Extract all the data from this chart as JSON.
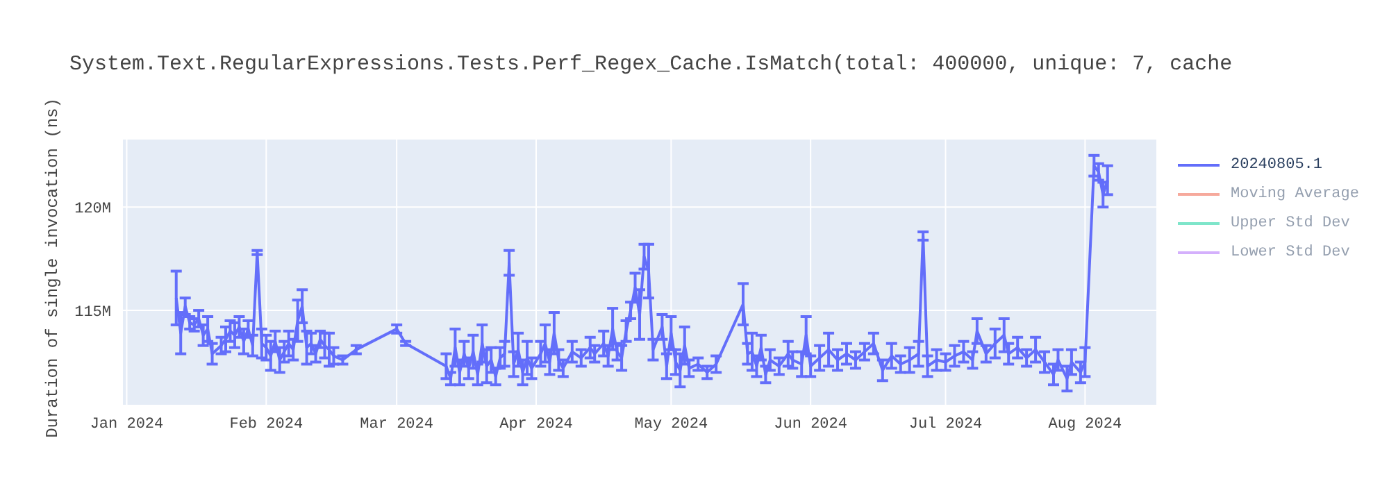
{
  "chart_data": {
    "type": "line",
    "title": "System.Text.RegularExpressions.Tests.Perf_Regex_Cache.IsMatch(total: 400000, unique: 7, cache",
    "ylabel": "Duration of single invocation (ns)",
    "x": [
      "2024-01-12",
      "2024-01-13",
      "2024-01-14",
      "2024-01-15",
      "2024-01-16",
      "2024-01-17",
      "2024-01-18",
      "2024-01-19",
      "2024-01-20",
      "2024-01-22",
      "2024-01-23",
      "2024-01-24",
      "2024-01-25",
      "2024-01-26",
      "2024-01-27",
      "2024-01-28",
      "2024-01-29",
      "2024-01-30",
      "2024-01-31",
      "2024-02-01",
      "2024-02-02",
      "2024-02-03",
      "2024-02-04",
      "2024-02-05",
      "2024-02-06",
      "2024-02-07",
      "2024-02-08",
      "2024-02-09",
      "2024-02-10",
      "2024-02-11",
      "2024-02-12",
      "2024-02-13",
      "2024-02-14",
      "2024-02-15",
      "2024-02-16",
      "2024-02-18",
      "2024-02-21",
      "2024-03-01",
      "2024-03-03",
      "2024-03-12",
      "2024-03-13",
      "2024-03-14",
      "2024-03-15",
      "2024-03-16",
      "2024-03-17",
      "2024-03-18",
      "2024-03-19",
      "2024-03-20",
      "2024-03-21",
      "2024-03-22",
      "2024-03-23",
      "2024-03-24",
      "2024-03-25",
      "2024-03-26",
      "2024-03-27",
      "2024-03-28",
      "2024-03-29",
      "2024-03-30",
      "2024-03-31",
      "2024-04-02",
      "2024-04-03",
      "2024-04-04",
      "2024-04-05",
      "2024-04-06",
      "2024-04-07",
      "2024-04-09",
      "2024-04-11",
      "2024-04-13",
      "2024-04-14",
      "2024-04-16",
      "2024-04-17",
      "2024-04-18",
      "2024-04-19",
      "2024-04-20",
      "2024-04-21",
      "2024-04-22",
      "2024-04-23",
      "2024-04-24",
      "2024-04-25",
      "2024-04-26",
      "2024-04-27",
      "2024-04-29",
      "2024-04-30",
      "2024-05-01",
      "2024-05-02",
      "2024-05-03",
      "2024-05-04",
      "2024-05-05",
      "2024-05-07",
      "2024-05-09",
      "2024-05-11",
      "2024-05-17",
      "2024-05-18",
      "2024-05-19",
      "2024-05-20",
      "2024-05-21",
      "2024-05-22",
      "2024-05-23",
      "2024-05-25",
      "2024-05-27",
      "2024-05-28",
      "2024-05-30",
      "2024-05-31",
      "2024-06-01",
      "2024-06-03",
      "2024-06-05",
      "2024-06-07",
      "2024-06-09",
      "2024-06-11",
      "2024-06-13",
      "2024-06-15",
      "2024-06-17",
      "2024-06-19",
      "2024-06-21",
      "2024-06-23",
      "2024-06-25",
      "2024-06-26",
      "2024-06-27",
      "2024-06-29",
      "2024-07-01",
      "2024-07-03",
      "2024-07-05",
      "2024-07-07",
      "2024-07-08",
      "2024-07-10",
      "2024-07-12",
      "2024-07-14",
      "2024-07-15",
      "2024-07-17",
      "2024-07-19",
      "2024-07-21",
      "2024-07-23",
      "2024-07-25",
      "2024-07-26",
      "2024-07-28",
      "2024-07-29",
      "2024-07-31",
      "2024-08-01",
      "2024-08-03",
      "2024-08-04",
      "2024-08-05",
      "2024-08-06"
    ],
    "series": [
      {
        "name": "20240805.1",
        "color": "#636efa",
        "values": [
          115600000.0,
          113900000.0,
          115200000.0,
          114400000.0,
          114300000.0,
          114600000.0,
          113800000.0,
          114100000.0,
          112900000.0,
          113300000.0,
          113600000.0,
          114000000.0,
          113800000.0,
          114200000.0,
          113500000.0,
          114100000.0,
          113300000.0,
          117800000.0,
          113400000.0,
          113200000.0,
          112800000.0,
          113500000.0,
          112600000.0,
          113000000.0,
          113400000.0,
          113100000.0,
          114500000.0,
          115200000.0,
          113200000.0,
          113400000.0,
          112900000.0,
          113600000.0,
          113300000.0,
          113100000.0,
          112800000.0,
          112600000.0,
          113100000.0,
          114100000.0,
          113400000.0,
          112300000.0,
          111700000.0,
          113200000.0,
          112000000.0,
          112900000.0,
          112200000.0,
          113000000.0,
          111900000.0,
          113400000.0,
          112300000.0,
          112600000.0,
          111800000.0,
          112700000.0,
          112900000.0,
          117300000.0,
          112400000.0,
          113100000.0,
          112000000.0,
          112700000.0,
          112200000.0,
          112900000.0,
          113400000.0,
          112500000.0,
          113900000.0,
          112600000.0,
          112200000.0,
          113000000.0,
          112700000.0,
          113200000.0,
          112900000.0,
          113400000.0,
          112800000.0,
          114100000.0,
          113000000.0,
          112700000.0,
          114000000.0,
          115000000.0,
          116100000.0,
          114800000.0,
          117600000.0,
          116900000.0,
          113100000.0,
          114200000.0,
          112300000.0,
          113900000.0,
          112500000.0,
          112100000.0,
          113300000.0,
          112200000.0,
          112400000.0,
          112000000.0,
          112400000.0,
          115300000.0,
          112900000.0,
          113000000.0,
          112300000.0,
          113200000.0,
          111900000.0,
          112600000.0,
          112300000.0,
          112900000.0,
          112600000.0,
          112400000.0,
          113800000.0,
          112300000.0,
          112700000.0,
          113100000.0,
          112600000.0,
          112900000.0,
          112600000.0,
          113000000.0,
          113400000.0,
          112100000.0,
          112800000.0,
          112400000.0,
          112600000.0,
          112900000.0,
          118600000.0,
          112300000.0,
          112600000.0,
          112500000.0,
          112800000.0,
          113000000.0,
          112600000.0,
          114000000.0,
          112900000.0,
          113400000.0,
          113800000.0,
          112900000.0,
          113200000.0,
          112700000.0,
          113100000.0,
          112500000.0,
          111900000.0,
          112600000.0,
          111700000.0,
          112500000.0,
          112000000.0,
          112500000.0,
          122000000.0,
          121700000.0,
          120600000.0,
          121300000.0
        ],
        "errors": [
          1300000.0,
          1000000.0,
          400000.0,
          300000.0,
          300000.0,
          400000.0,
          500000.0,
          600000.0,
          500000.0,
          400000.0,
          600000.0,
          500000.0,
          600000.0,
          500000.0,
          600000.0,
          400000.0,
          500000.0,
          100000.0,
          700000.0,
          600000.0,
          700000.0,
          500000.0,
          600000.0,
          500000.0,
          600000.0,
          500000.0,
          1000000.0,
          800000.0,
          800000.0,
          500000.0,
          400000.0,
          400000.0,
          600000.0,
          800000.0,
          400000.0,
          200000.0,
          200000.0,
          200000.0,
          100000.0,
          600000.0,
          300000.0,
          900000.0,
          600000.0,
          600000.0,
          500000.0,
          800000.0,
          500000.0,
          900000.0,
          800000.0,
          600000.0,
          400000.0,
          500000.0,
          600000.0,
          600000.0,
          600000.0,
          800000.0,
          600000.0,
          800000.0,
          500000.0,
          600000.0,
          900000.0,
          600000.0,
          1000000.0,
          500000.0,
          400000.0,
          500000.0,
          400000.0,
          500000.0,
          400000.0,
          600000.0,
          500000.0,
          1000000.0,
          400000.0,
          600000.0,
          500000.0,
          400000.0,
          700000.0,
          1200000.0,
          600000.0,
          1300000.0,
          500000.0,
          600000.0,
          600000.0,
          800000.0,
          600000.0,
          800000.0,
          900000.0,
          400000.0,
          300000.0,
          300000.0,
          400000.0,
          1000000.0,
          500000.0,
          900000.0,
          500000.0,
          600000.0,
          400000.0,
          500000.0,
          400000.0,
          600000.0,
          400000.0,
          600000.0,
          900000.0,
          500000.0,
          600000.0,
          800000.0,
          500000.0,
          500000.0,
          400000.0,
          400000.0,
          500000.0,
          500000.0,
          600000.0,
          400000.0,
          600000.0,
          600000.0,
          200000.0,
          500000.0,
          500000.0,
          400000.0,
          500000.0,
          500000.0,
          400000.0,
          600000.0,
          400000.0,
          700000.0,
          800000.0,
          500000.0,
          500000.0,
          400000.0,
          600000.0,
          500000.0,
          500000.0,
          500000.0,
          600000.0,
          600000.0,
          500000.0,
          700000.0,
          500000.0,
          400000.0,
          600000.0,
          700000.0
        ]
      },
      {
        "name": "Moving Average",
        "color": "#ef553b",
        "values": [
          null,
          null,
          null,
          null,
          null,
          null,
          null,
          null,
          null,
          null,
          null,
          null,
          null,
          null,
          null,
          null,
          null,
          null,
          null,
          null,
          null,
          null,
          null,
          null,
          null,
          null,
          null,
          null,
          null,
          null,
          null,
          null,
          null,
          null,
          null,
          null,
          null,
          null,
          null,
          null,
          null,
          null,
          null,
          null,
          null,
          null,
          null,
          null,
          null,
          null,
          null,
          null,
          null,
          null,
          null,
          null,
          null,
          null,
          null,
          null,
          null,
          null,
          null,
          null,
          null,
          null,
          null,
          null,
          null,
          null,
          null,
          null,
          null,
          null,
          null,
          null,
          null,
          null,
          null,
          null,
          null,
          null,
          null,
          null,
          null,
          null,
          null,
          null,
          null,
          null,
          null,
          null,
          null,
          null,
          null,
          null,
          null,
          null,
          null,
          null,
          null,
          null,
          null,
          null,
          null,
          null,
          null,
          null,
          null,
          null,
          null,
          null,
          null,
          null,
          null,
          null,
          null,
          null,
          null,
          null,
          null,
          null,
          null,
          null,
          null,
          null,
          null,
          null,
          null,
          null,
          null,
          null,
          null,
          null,
          null,
          null,
          null,
          null,
          null,
          null,
          null,
          null
        ]
      },
      {
        "name": "Upper Std Dev",
        "color": "#00cc96",
        "values": [
          null,
          null,
          null,
          null,
          null,
          null,
          null,
          null,
          null,
          null,
          null,
          null,
          null,
          null,
          null,
          null,
          null,
          null,
          null,
          null,
          null,
          null,
          null,
          null,
          null,
          null,
          null,
          null,
          null,
          null,
          null,
          null,
          null,
          null,
          null,
          null,
          null,
          null,
          null,
          null,
          null,
          null,
          null,
          null,
          null,
          null,
          null,
          null,
          null,
          null,
          null,
          null,
          null,
          null,
          null,
          null,
          null,
          null,
          null,
          null,
          null,
          null,
          null,
          null,
          null,
          null,
          null,
          null,
          null,
          null,
          null,
          null,
          null,
          null,
          null,
          null,
          null,
          null,
          null,
          null,
          null,
          null,
          null,
          null,
          null,
          null,
          null,
          null,
          null,
          null,
          null,
          null,
          null,
          null,
          null,
          null,
          null,
          null,
          null,
          null,
          null,
          null,
          null,
          null,
          null,
          null,
          null,
          null,
          null,
          null,
          null,
          null,
          null,
          null,
          null,
          null,
          null,
          null,
          null,
          null,
          null,
          null,
          null,
          null,
          null,
          null,
          null,
          null,
          null,
          null,
          null,
          null,
          null,
          null,
          null,
          null,
          null,
          null,
          null,
          null,
          null,
          null
        ]
      },
      {
        "name": "Lower Std Dev",
        "color": "#ab63fa",
        "values": [
          null,
          null,
          null,
          null,
          null,
          null,
          null,
          null,
          null,
          null,
          null,
          null,
          null,
          null,
          null,
          null,
          null,
          null,
          null,
          null,
          null,
          null,
          null,
          null,
          null,
          null,
          null,
          null,
          null,
          null,
          null,
          null,
          null,
          null,
          null,
          null,
          null,
          null,
          null,
          null,
          null,
          null,
          null,
          null,
          null,
          null,
          null,
          null,
          null,
          null,
          null,
          null,
          null,
          null,
          null,
          null,
          null,
          null,
          null,
          null,
          null,
          null,
          null,
          null,
          null,
          null,
          null,
          null,
          null,
          null,
          null,
          null,
          null,
          null,
          null,
          null,
          null,
          null,
          null,
          null,
          null,
          null,
          null,
          null,
          null,
          null,
          null,
          null,
          null,
          null,
          null,
          null,
          null,
          null,
          null,
          null,
          null,
          null,
          null,
          null,
          null,
          null,
          null,
          null,
          null,
          null,
          null,
          null,
          null,
          null,
          null,
          null,
          null,
          null,
          null,
          null,
          null,
          null,
          null,
          null,
          null,
          null,
          null,
          null,
          null,
          null,
          null,
          null,
          null,
          null,
          null,
          null,
          null,
          null,
          null,
          null,
          null,
          null,
          null,
          null,
          null,
          null
        ]
      }
    ],
    "xlim": [
      "2023-12-31",
      "2024-08-17"
    ],
    "xticks": [
      {
        "value": "2024-01-01",
        "label": "Jan 2024"
      },
      {
        "value": "2024-02-01",
        "label": "Feb 2024"
      },
      {
        "value": "2024-03-01",
        "label": "Mar 2024"
      },
      {
        "value": "2024-04-01",
        "label": "Apr 2024"
      },
      {
        "value": "2024-05-01",
        "label": "May 2024"
      },
      {
        "value": "2024-06-01",
        "label": "Jun 2024"
      },
      {
        "value": "2024-07-01",
        "label": "Jul 2024"
      },
      {
        "value": "2024-08-01",
        "label": "Aug 2024"
      }
    ],
    "ylim": [
      110400000.0,
      123300000.0
    ],
    "yticks": [
      {
        "value": 115000000.0,
        "label": "115M"
      },
      {
        "value": 120000000.0,
        "label": "120M"
      }
    ],
    "grid": true,
    "legend": "right",
    "marker": "none",
    "line_style": "solid"
  }
}
